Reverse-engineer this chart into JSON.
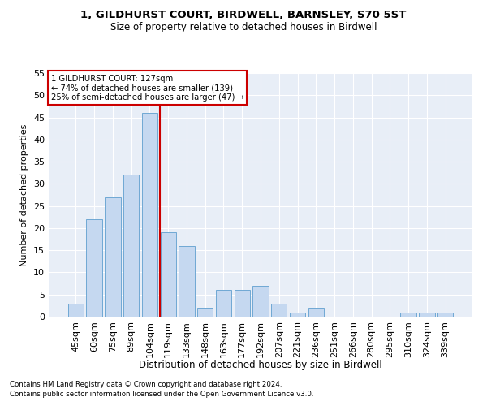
{
  "title": "1, GILDHURST COURT, BIRDWELL, BARNSLEY, S70 5ST",
  "subtitle": "Size of property relative to detached houses in Birdwell",
  "xlabel": "Distribution of detached houses by size in Birdwell",
  "ylabel": "Number of detached properties",
  "categories": [
    "45sqm",
    "60sqm",
    "75sqm",
    "89sqm",
    "104sqm",
    "119sqm",
    "133sqm",
    "148sqm",
    "163sqm",
    "177sqm",
    "192sqm",
    "207sqm",
    "221sqm",
    "236sqm",
    "251sqm",
    "266sqm",
    "280sqm",
    "295sqm",
    "310sqm",
    "324sqm",
    "339sqm"
  ],
  "values": [
    3,
    22,
    27,
    32,
    46,
    19,
    16,
    2,
    6,
    6,
    7,
    3,
    1,
    2,
    0,
    0,
    0,
    0,
    1,
    1,
    1
  ],
  "bar_color": "#c5d8f0",
  "bar_edge_color": "#6fa8d4",
  "vline_pos": 4.57,
  "vline_color": "#cc0000",
  "annotation_text": "1 GILDHURST COURT: 127sqm\n← 74% of detached houses are smaller (139)\n25% of semi-detached houses are larger (47) →",
  "annotation_box_color": "#ffffff",
  "annotation_box_edge": "#cc0000",
  "ylim": [
    0,
    55
  ],
  "yticks": [
    0,
    5,
    10,
    15,
    20,
    25,
    30,
    35,
    40,
    45,
    50,
    55
  ],
  "bg_color": "#e8eef7",
  "footnote1": "Contains HM Land Registry data © Crown copyright and database right 2024.",
  "footnote2": "Contains public sector information licensed under the Open Government Licence v3.0."
}
